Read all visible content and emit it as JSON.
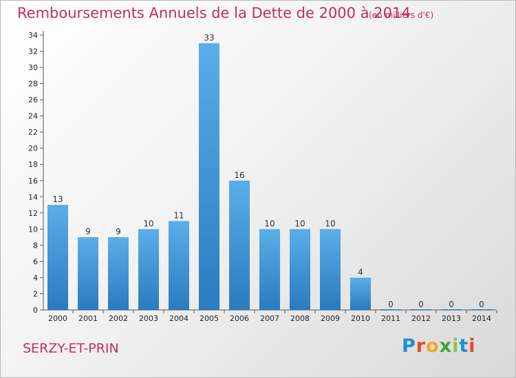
{
  "header": {
    "title": "Remboursements Annuels de la Dette de 2000 à 2014",
    "unit": "(en milliers d'€)"
  },
  "footer": {
    "commune": "SERZY-ET-PRIN",
    "logo_text": "Proxiti"
  },
  "colors": {
    "bar_top": "#5aaee8",
    "bar_bottom": "#2a7bbf",
    "title": "#c0305a"
  },
  "chart_data": {
    "type": "bar",
    "title": "Remboursements Annuels de la Dette de 2000 à 2014",
    "xlabel": "",
    "ylabel": "",
    "categories": [
      "2000",
      "2001",
      "2002",
      "2003",
      "2004",
      "2005",
      "2006",
      "2007",
      "2008",
      "2009",
      "2010",
      "2011",
      "2012",
      "2013",
      "2014"
    ],
    "values": [
      13,
      9,
      9,
      10,
      11,
      33,
      16,
      10,
      10,
      10,
      4,
      0,
      0,
      0,
      0
    ],
    "ylim": [
      0,
      34
    ],
    "yticks": [
      0,
      2,
      4,
      6,
      8,
      10,
      12,
      14,
      16,
      18,
      20,
      22,
      24,
      26,
      28,
      30,
      32,
      34
    ],
    "grid": false,
    "legend": "none"
  }
}
